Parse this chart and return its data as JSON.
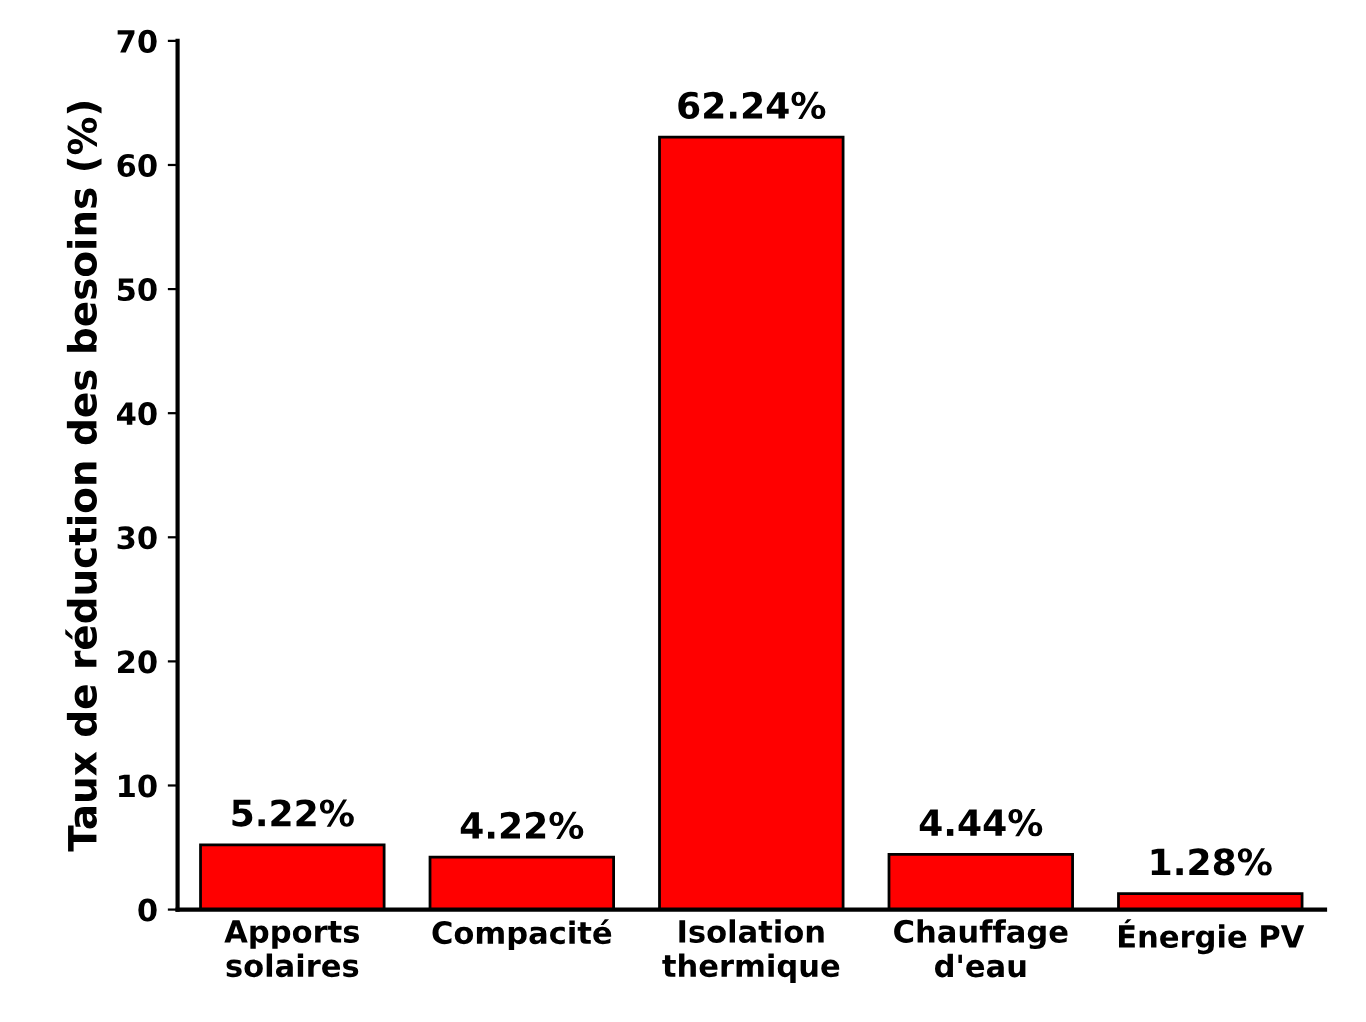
{
  "chart_data": {
    "type": "bar",
    "ylabel": "Taux de réduction des besoins (%)",
    "categories": [
      "Apports\nsolaires",
      "Compacité",
      "Isolation\nthermique",
      "Chauffage\nd'eau",
      "Énergie PV"
    ],
    "values": [
      5.22,
      4.22,
      62.24,
      4.44,
      1.28
    ],
    "value_labels": [
      "5.22%",
      "4.22%",
      "62.24%",
      "4.44%",
      "1.28%"
    ],
    "color": "#ff0000",
    "ylim": [
      0,
      70
    ],
    "yticks": [
      0,
      10,
      20,
      30,
      40,
      50,
      60,
      70
    ],
    "grid": false,
    "legend": false
  }
}
